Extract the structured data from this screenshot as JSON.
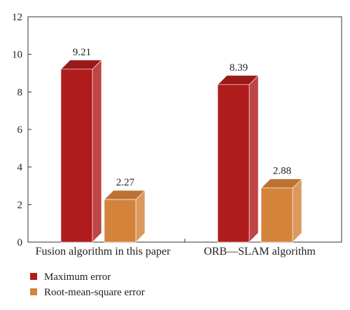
{
  "chart_data": {
    "type": "bar",
    "categories": [
      "Fusion algorithm in this paper",
      "ORB—SLAM algorithm"
    ],
    "series": [
      {
        "name": "Maximum error",
        "values": [
          9.21,
          8.39
        ],
        "color": "#b01c1c"
      },
      {
        "name": "Root-mean-square error",
        "values": [
          2.27,
          2.88
        ],
        "color": "#d4833a"
      }
    ],
    "data_labels": [
      [
        "9.21",
        "8.39"
      ],
      [
        "2.27",
        "2.88"
      ]
    ],
    "ylim": [
      0,
      12
    ],
    "yticks": [
      "0",
      "2",
      "4",
      "6",
      "8",
      "10",
      "12"
    ],
    "grid": false,
    "legend_position": "bottom-left",
    "style": "3d-bars"
  }
}
